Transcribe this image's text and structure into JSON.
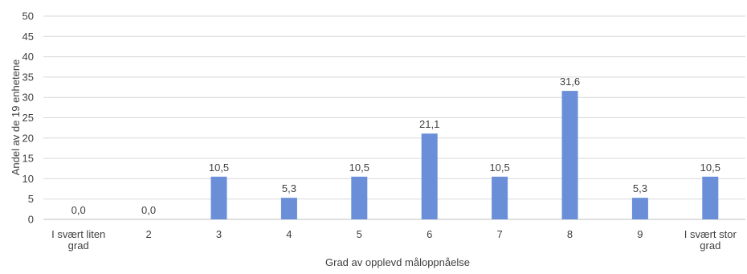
{
  "chart_data": {
    "type": "bar",
    "title": "",
    "xlabel": "Grad av opplevd måloppnåelse",
    "ylabel": "Andel av de 19 enhetene",
    "categories": [
      [
        "I svært liten",
        "grad"
      ],
      [
        "2"
      ],
      [
        "3"
      ],
      [
        "4"
      ],
      [
        "5"
      ],
      [
        "6"
      ],
      [
        "7"
      ],
      [
        "8"
      ],
      [
        "9"
      ],
      [
        "I svært stor",
        "grad"
      ]
    ],
    "values": [
      0.0,
      0.0,
      10.5,
      5.3,
      10.5,
      21.1,
      10.5,
      31.6,
      5.3,
      10.5
    ],
    "value_labels": [
      "0,0",
      "0,0",
      "10,5",
      "5,3",
      "10,5",
      "21,1",
      "10,5",
      "31,6",
      "5,3",
      "10,5"
    ],
    "ylim": [
      0,
      50
    ],
    "yticks": [
      0,
      5,
      10,
      15,
      20,
      25,
      30,
      35,
      40,
      45,
      50
    ],
    "grid": true,
    "legend": "none",
    "bar_color": "#6a8fd8"
  }
}
